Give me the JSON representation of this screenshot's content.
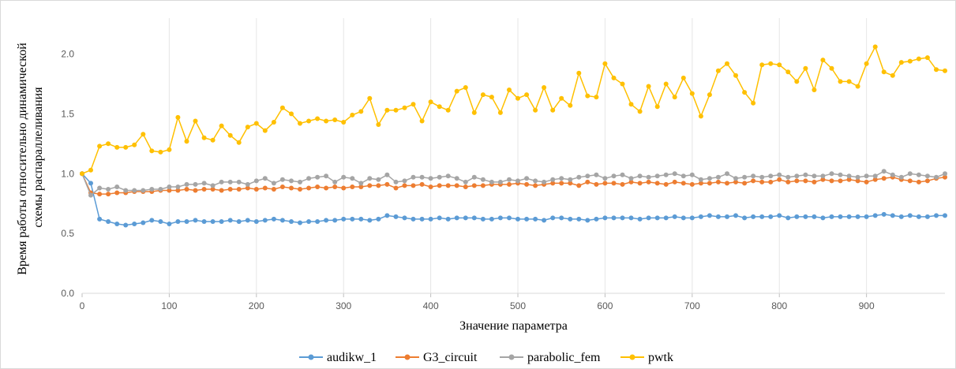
{
  "chart_data": {
    "type": "line",
    "title": "",
    "xlabel": "Значение параметра",
    "ylabel_lines": [
      "Время работы относительно динамической",
      "схемы распараллеливания"
    ],
    "xlim": [
      0,
      990
    ],
    "ylim": [
      0.0,
      2.3
    ],
    "x_ticks": [
      0,
      100,
      200,
      300,
      400,
      500,
      600,
      700,
      800,
      900
    ],
    "y_ticks": [
      "0.0",
      "0.5",
      "1.0",
      "1.5",
      "2.0"
    ],
    "grid": "vertical",
    "legend_position": "bottom",
    "x_start": 0,
    "x_step": 10,
    "series": [
      {
        "name": "audikw_1",
        "color": "#5B9BD5",
        "values": [
          1.0,
          0.92,
          0.62,
          0.6,
          0.58,
          0.57,
          0.58,
          0.59,
          0.61,
          0.6,
          0.58,
          0.6,
          0.6,
          0.61,
          0.6,
          0.6,
          0.6,
          0.61,
          0.6,
          0.61,
          0.6,
          0.61,
          0.62,
          0.61,
          0.6,
          0.59,
          0.6,
          0.6,
          0.61,
          0.61,
          0.62,
          0.62,
          0.62,
          0.61,
          0.62,
          0.65,
          0.64,
          0.63,
          0.62,
          0.62,
          0.62,
          0.63,
          0.62,
          0.63,
          0.63,
          0.63,
          0.62,
          0.62,
          0.63,
          0.63,
          0.62,
          0.62,
          0.62,
          0.61,
          0.63,
          0.63,
          0.62,
          0.62,
          0.61,
          0.62,
          0.63,
          0.63,
          0.63,
          0.63,
          0.62,
          0.63,
          0.63,
          0.63,
          0.64,
          0.63,
          0.63,
          0.64,
          0.65,
          0.64,
          0.64,
          0.65,
          0.63,
          0.64,
          0.64,
          0.64,
          0.65,
          0.63,
          0.64,
          0.64,
          0.64,
          0.63,
          0.64,
          0.64,
          0.64,
          0.64,
          0.64,
          0.65,
          0.66,
          0.65,
          0.64,
          0.65,
          0.64,
          0.64,
          0.65,
          0.65
        ]
      },
      {
        "name": "G3_circuit",
        "color": "#ED7D31",
        "values": [
          1.0,
          0.84,
          0.83,
          0.83,
          0.84,
          0.84,
          0.85,
          0.85,
          0.85,
          0.86,
          0.86,
          0.86,
          0.87,
          0.86,
          0.87,
          0.87,
          0.86,
          0.87,
          0.87,
          0.88,
          0.87,
          0.88,
          0.87,
          0.89,
          0.88,
          0.87,
          0.88,
          0.89,
          0.88,
          0.89,
          0.88,
          0.89,
          0.89,
          0.9,
          0.9,
          0.91,
          0.88,
          0.9,
          0.9,
          0.91,
          0.89,
          0.9,
          0.9,
          0.9,
          0.89,
          0.9,
          0.9,
          0.91,
          0.91,
          0.91,
          0.92,
          0.91,
          0.9,
          0.91,
          0.92,
          0.92,
          0.92,
          0.9,
          0.93,
          0.91,
          0.92,
          0.92,
          0.91,
          0.93,
          0.92,
          0.93,
          0.92,
          0.91,
          0.93,
          0.92,
          0.91,
          0.92,
          0.92,
          0.93,
          0.92,
          0.93,
          0.92,
          0.94,
          0.93,
          0.93,
          0.95,
          0.93,
          0.94,
          0.94,
          0.93,
          0.95,
          0.94,
          0.94,
          0.95,
          0.94,
          0.93,
          0.95,
          0.96,
          0.97,
          0.95,
          0.94,
          0.93,
          0.94,
          0.96,
          0.97
        ]
      },
      {
        "name": "parabolic_fem",
        "color": "#A5A5A5",
        "values": [
          1.0,
          0.82,
          0.88,
          0.87,
          0.89,
          0.86,
          0.86,
          0.86,
          0.87,
          0.87,
          0.89,
          0.89,
          0.91,
          0.91,
          0.92,
          0.9,
          0.93,
          0.93,
          0.93,
          0.91,
          0.94,
          0.96,
          0.92,
          0.95,
          0.94,
          0.93,
          0.96,
          0.97,
          0.98,
          0.93,
          0.97,
          0.96,
          0.92,
          0.96,
          0.95,
          0.99,
          0.93,
          0.94,
          0.97,
          0.97,
          0.96,
          0.97,
          0.98,
          0.96,
          0.93,
          0.97,
          0.95,
          0.93,
          0.93,
          0.95,
          0.94,
          0.96,
          0.94,
          0.93,
          0.95,
          0.96,
          0.95,
          0.97,
          0.98,
          0.99,
          0.96,
          0.98,
          0.99,
          0.96,
          0.98,
          0.97,
          0.98,
          0.99,
          1.0,
          0.98,
          0.99,
          0.95,
          0.96,
          0.97,
          1.0,
          0.96,
          0.97,
          0.98,
          0.97,
          0.98,
          0.99,
          0.97,
          0.98,
          0.99,
          0.98,
          0.98,
          1.0,
          0.99,
          0.98,
          0.97,
          0.98,
          0.98,
          1.02,
          0.99,
          0.97,
          1.0,
          0.99,
          0.98,
          0.97,
          1.0
        ]
      },
      {
        "name": "pwtk",
        "color": "#FFC000",
        "values": [
          1.0,
          1.03,
          1.23,
          1.25,
          1.22,
          1.22,
          1.24,
          1.33,
          1.19,
          1.18,
          1.2,
          1.47,
          1.27,
          1.44,
          1.3,
          1.28,
          1.4,
          1.32,
          1.26,
          1.39,
          1.42,
          1.36,
          1.43,
          1.55,
          1.5,
          1.42,
          1.44,
          1.46,
          1.44,
          1.45,
          1.43,
          1.49,
          1.52,
          1.63,
          1.41,
          1.53,
          1.53,
          1.55,
          1.58,
          1.44,
          1.6,
          1.56,
          1.53,
          1.69,
          1.72,
          1.51,
          1.66,
          1.64,
          1.51,
          1.7,
          1.63,
          1.66,
          1.53,
          1.72,
          1.53,
          1.63,
          1.57,
          1.84,
          1.65,
          1.64,
          1.92,
          1.8,
          1.75,
          1.58,
          1.52,
          1.73,
          1.56,
          1.75,
          1.64,
          1.8,
          1.67,
          1.48,
          1.66,
          1.86,
          1.92,
          1.82,
          1.68,
          1.59,
          1.91,
          1.92,
          1.91,
          1.85,
          1.77,
          1.88,
          1.7,
          1.95,
          1.88,
          1.77,
          1.77,
          1.73,
          1.92,
          2.06,
          1.85,
          1.82,
          1.93,
          1.94,
          1.96,
          1.97,
          1.87,
          1.86
        ]
      }
    ]
  }
}
